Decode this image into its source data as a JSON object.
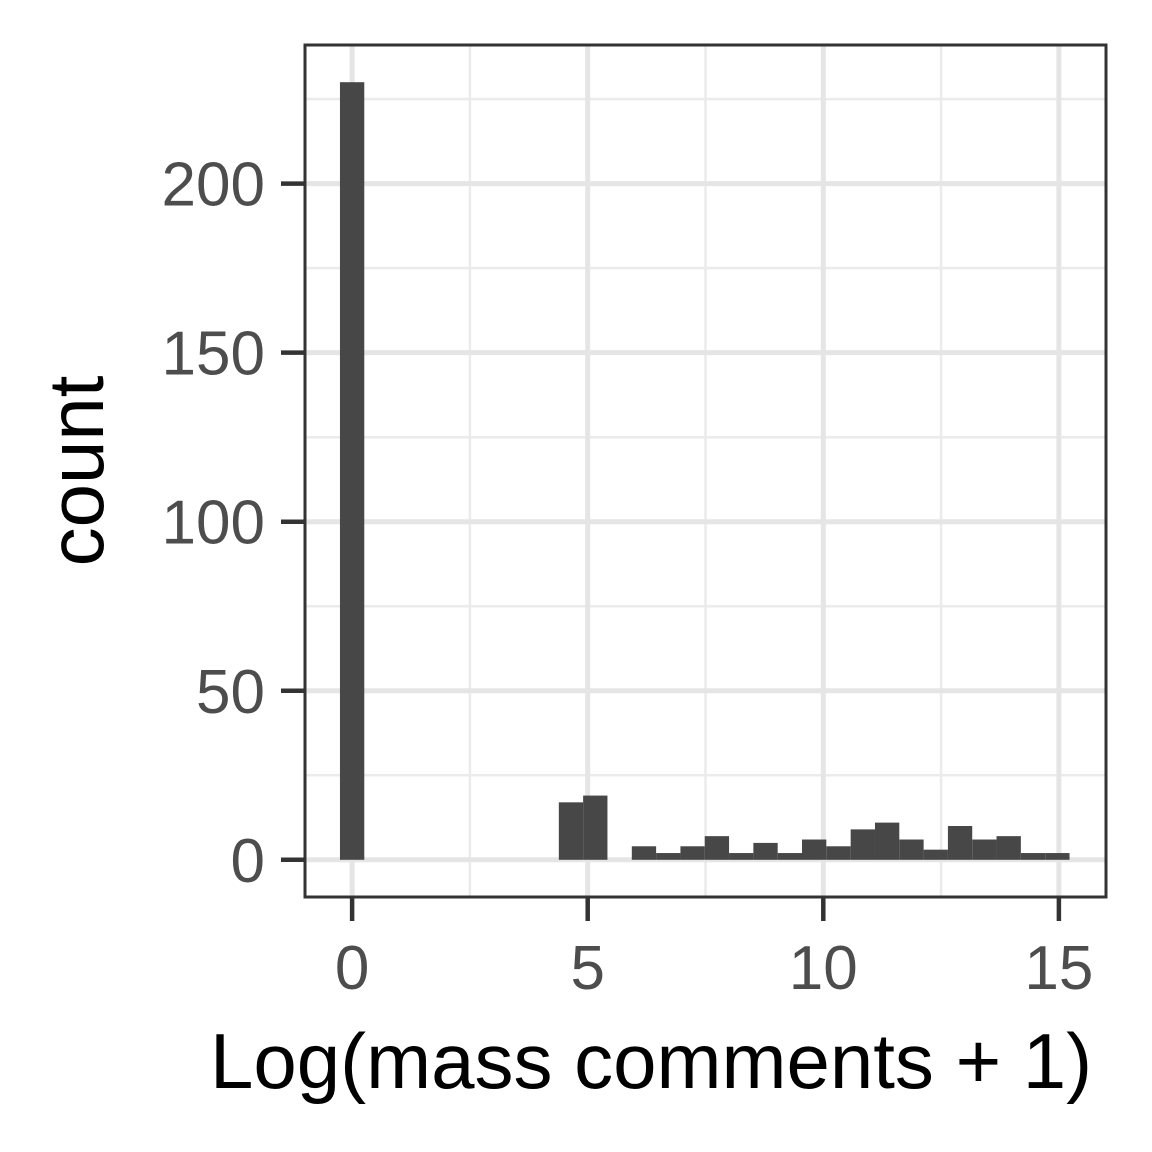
{
  "chart_data": {
    "type": "bar",
    "title": "",
    "xlabel": "Log(mass comments + 1)",
    "ylabel": "count",
    "xlim": [
      -1,
      16
    ],
    "ylim": [
      -11,
      241
    ],
    "x_ticks": [
      0,
      5,
      10,
      15
    ],
    "y_ticks": [
      0,
      50,
      100,
      150,
      200
    ],
    "x_tick_labels": [
      "0",
      "5",
      "10",
      "15"
    ],
    "y_tick_labels": [
      "0",
      "50",
      "100",
      "150",
      "200"
    ],
    "grid": true,
    "legend": "none",
    "bar_color": "#474747",
    "bin_width": 0.516,
    "bins": [
      {
        "x": 0.0,
        "count": 230
      },
      {
        "x": 4.645,
        "count": 17
      },
      {
        "x": 5.161,
        "count": 19
      },
      {
        "x": 5.677,
        "count": 0
      },
      {
        "x": 6.194,
        "count": 4
      },
      {
        "x": 6.71,
        "count": 2
      },
      {
        "x": 7.226,
        "count": 4
      },
      {
        "x": 7.742,
        "count": 7
      },
      {
        "x": 8.258,
        "count": 2
      },
      {
        "x": 8.774,
        "count": 5
      },
      {
        "x": 9.29,
        "count": 2
      },
      {
        "x": 9.806,
        "count": 6
      },
      {
        "x": 10.323,
        "count": 4
      },
      {
        "x": 10.839,
        "count": 9
      },
      {
        "x": 11.355,
        "count": 11
      },
      {
        "x": 11.871,
        "count": 6
      },
      {
        "x": 12.387,
        "count": 3
      },
      {
        "x": 12.903,
        "count": 10
      },
      {
        "x": 13.419,
        "count": 6
      },
      {
        "x": 13.935,
        "count": 7
      },
      {
        "x": 14.452,
        "count": 2
      },
      {
        "x": 14.968,
        "count": 2
      }
    ]
  }
}
